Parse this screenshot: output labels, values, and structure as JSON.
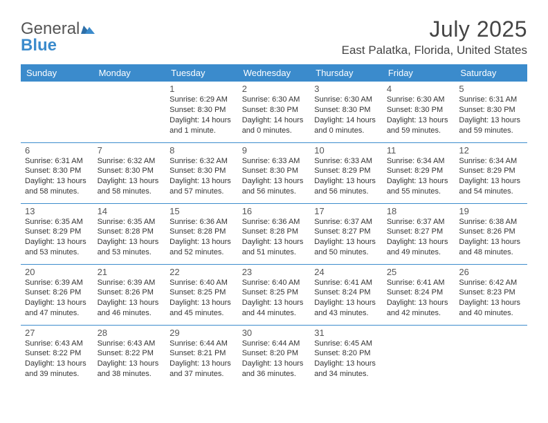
{
  "logo": {
    "line1": "General",
    "line2": "Blue"
  },
  "title": "July 2025",
  "location": "East Palatka, Florida, United States",
  "colors": {
    "header_bg": "#3b8bcc",
    "header_text": "#ffffff",
    "border": "#3b8bcc",
    "body_text": "#333333",
    "title_text": "#444444"
  },
  "weekdays": [
    "Sunday",
    "Monday",
    "Tuesday",
    "Wednesday",
    "Thursday",
    "Friday",
    "Saturday"
  ],
  "weeks": [
    [
      null,
      null,
      {
        "n": "1",
        "sr": "6:29 AM",
        "ss": "8:30 PM",
        "dl": "14 hours and 1 minute."
      },
      {
        "n": "2",
        "sr": "6:30 AM",
        "ss": "8:30 PM",
        "dl": "14 hours and 0 minutes."
      },
      {
        "n": "3",
        "sr": "6:30 AM",
        "ss": "8:30 PM",
        "dl": "14 hours and 0 minutes."
      },
      {
        "n": "4",
        "sr": "6:30 AM",
        "ss": "8:30 PM",
        "dl": "13 hours and 59 minutes."
      },
      {
        "n": "5",
        "sr": "6:31 AM",
        "ss": "8:30 PM",
        "dl": "13 hours and 59 minutes."
      }
    ],
    [
      {
        "n": "6",
        "sr": "6:31 AM",
        "ss": "8:30 PM",
        "dl": "13 hours and 58 minutes."
      },
      {
        "n": "7",
        "sr": "6:32 AM",
        "ss": "8:30 PM",
        "dl": "13 hours and 58 minutes."
      },
      {
        "n": "8",
        "sr": "6:32 AM",
        "ss": "8:30 PM",
        "dl": "13 hours and 57 minutes."
      },
      {
        "n": "9",
        "sr": "6:33 AM",
        "ss": "8:30 PM",
        "dl": "13 hours and 56 minutes."
      },
      {
        "n": "10",
        "sr": "6:33 AM",
        "ss": "8:29 PM",
        "dl": "13 hours and 56 minutes."
      },
      {
        "n": "11",
        "sr": "6:34 AM",
        "ss": "8:29 PM",
        "dl": "13 hours and 55 minutes."
      },
      {
        "n": "12",
        "sr": "6:34 AM",
        "ss": "8:29 PM",
        "dl": "13 hours and 54 minutes."
      }
    ],
    [
      {
        "n": "13",
        "sr": "6:35 AM",
        "ss": "8:29 PM",
        "dl": "13 hours and 53 minutes."
      },
      {
        "n": "14",
        "sr": "6:35 AM",
        "ss": "8:28 PM",
        "dl": "13 hours and 53 minutes."
      },
      {
        "n": "15",
        "sr": "6:36 AM",
        "ss": "8:28 PM",
        "dl": "13 hours and 52 minutes."
      },
      {
        "n": "16",
        "sr": "6:36 AM",
        "ss": "8:28 PM",
        "dl": "13 hours and 51 minutes."
      },
      {
        "n": "17",
        "sr": "6:37 AM",
        "ss": "8:27 PM",
        "dl": "13 hours and 50 minutes."
      },
      {
        "n": "18",
        "sr": "6:37 AM",
        "ss": "8:27 PM",
        "dl": "13 hours and 49 minutes."
      },
      {
        "n": "19",
        "sr": "6:38 AM",
        "ss": "8:26 PM",
        "dl": "13 hours and 48 minutes."
      }
    ],
    [
      {
        "n": "20",
        "sr": "6:39 AM",
        "ss": "8:26 PM",
        "dl": "13 hours and 47 minutes."
      },
      {
        "n": "21",
        "sr": "6:39 AM",
        "ss": "8:26 PM",
        "dl": "13 hours and 46 minutes."
      },
      {
        "n": "22",
        "sr": "6:40 AM",
        "ss": "8:25 PM",
        "dl": "13 hours and 45 minutes."
      },
      {
        "n": "23",
        "sr": "6:40 AM",
        "ss": "8:25 PM",
        "dl": "13 hours and 44 minutes."
      },
      {
        "n": "24",
        "sr": "6:41 AM",
        "ss": "8:24 PM",
        "dl": "13 hours and 43 minutes."
      },
      {
        "n": "25",
        "sr": "6:41 AM",
        "ss": "8:24 PM",
        "dl": "13 hours and 42 minutes."
      },
      {
        "n": "26",
        "sr": "6:42 AM",
        "ss": "8:23 PM",
        "dl": "13 hours and 40 minutes."
      }
    ],
    [
      {
        "n": "27",
        "sr": "6:43 AM",
        "ss": "8:22 PM",
        "dl": "13 hours and 39 minutes."
      },
      {
        "n": "28",
        "sr": "6:43 AM",
        "ss": "8:22 PM",
        "dl": "13 hours and 38 minutes."
      },
      {
        "n": "29",
        "sr": "6:44 AM",
        "ss": "8:21 PM",
        "dl": "13 hours and 37 minutes."
      },
      {
        "n": "30",
        "sr": "6:44 AM",
        "ss": "8:20 PM",
        "dl": "13 hours and 36 minutes."
      },
      {
        "n": "31",
        "sr": "6:45 AM",
        "ss": "8:20 PM",
        "dl": "13 hours and 34 minutes."
      },
      null,
      null
    ]
  ],
  "labels": {
    "sunrise": "Sunrise:",
    "sunset": "Sunset:",
    "daylight": "Daylight:"
  }
}
